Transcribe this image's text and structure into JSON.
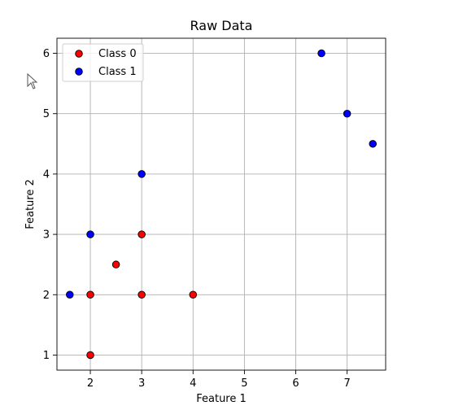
{
  "chart_data": {
    "type": "scatter",
    "title": "Raw Data",
    "xlabel": "Feature 1",
    "ylabel": "Feature 2",
    "xlim": [
      1.35,
      7.75
    ],
    "ylim": [
      0.75,
      6.25
    ],
    "xticks": [
      2,
      3,
      4,
      5,
      6,
      7
    ],
    "yticks": [
      1,
      2,
      3,
      4,
      5,
      6
    ],
    "grid": true,
    "legend_position": "top-left",
    "series": [
      {
        "name": "Class 0",
        "color": "#ff0000",
        "points": [
          {
            "x": 2,
            "y": 1
          },
          {
            "x": 2,
            "y": 2
          },
          {
            "x": 2.5,
            "y": 2.5
          },
          {
            "x": 3,
            "y": 2
          },
          {
            "x": 3,
            "y": 3
          },
          {
            "x": 4,
            "y": 2
          }
        ]
      },
      {
        "name": "Class 1",
        "color": "#0000ff",
        "points": [
          {
            "x": 1.6,
            "y": 2
          },
          {
            "x": 2,
            "y": 3
          },
          {
            "x": 3,
            "y": 4
          },
          {
            "x": 6.5,
            "y": 6
          },
          {
            "x": 7,
            "y": 5
          },
          {
            "x": 7.5,
            "y": 4.5
          }
        ]
      }
    ]
  },
  "cursor": {
    "icon": "arrow-cursor-icon"
  }
}
